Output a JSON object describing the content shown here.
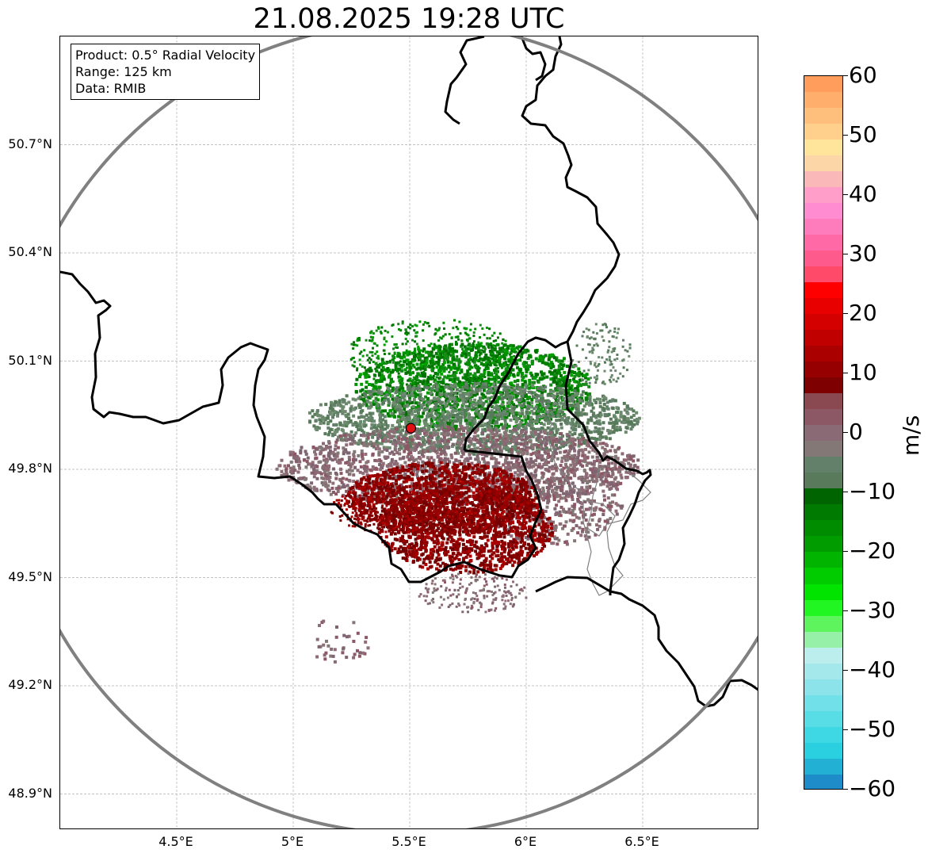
{
  "title": "21.08.2025 19:28 UTC",
  "info": {
    "product": "Product: 0.5° Radial Velocity",
    "range": "Range: 125 km",
    "data": "Data: RMIB"
  },
  "map": {
    "lon_range": [
      4.0,
      7.0
    ],
    "lat_range": [
      48.8,
      51.0
    ],
    "x_ticks": [
      "4.5°E",
      "5°E",
      "5.5°E",
      "6°E",
      "6.5°E"
    ],
    "y_ticks": [
      "50.7°N",
      "50.4°N",
      "50.1°N",
      "49.8°N",
      "49.5°N",
      "49.2°N",
      "48.9°N"
    ],
    "grid": true,
    "radar_site": {
      "lon": 5.505,
      "lat": 49.914
    },
    "range_ring_km": 125,
    "colors": {
      "ring": "#808080",
      "border": "#000000",
      "admin": "#808080",
      "site": "#e01010"
    }
  },
  "colorbar": {
    "unit": "m/s",
    "min": -60,
    "max": 60,
    "tick_labels": [
      "60",
      "50",
      "40",
      "30",
      "20",
      "10",
      "0",
      "−10",
      "−20",
      "−30",
      "−40",
      "−50",
      "−60"
    ],
    "bands": [
      "#ff9d5c",
      "#ffae6c",
      "#ffbf7c",
      "#ffd08c",
      "#ffe59c",
      "#fdd6a8",
      "#fbb8b8",
      "#ff9ec8",
      "#ff8cd0",
      "#ff7cbc",
      "#ff6aa6",
      "#ff5a8c",
      "#ff4a6a",
      "#ff0000",
      "#e80000",
      "#d40000",
      "#c00000",
      "#aa0000",
      "#960000",
      "#7e0000",
      "#8a4850",
      "#8c5866",
      "#8a6a74",
      "#847876",
      "#62806a",
      "#5a7a5c",
      "#006400",
      "#007a00",
      "#008c00",
      "#009c00",
      "#00b400",
      "#00cc00",
      "#00e400",
      "#22f622",
      "#5ef45e",
      "#96f0a8",
      "#bceeee",
      "#a4e8ec",
      "#8ce4ea",
      "#72e0e8",
      "#58dce6",
      "#3ed8e4",
      "#2ad0e0",
      "#22b0d4",
      "#1e8cc8"
    ]
  }
}
